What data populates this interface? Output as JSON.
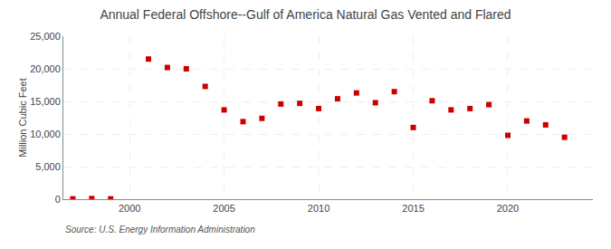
{
  "chart_data": {
    "type": "scatter",
    "title": "Annual Federal Offshore--Gulf of America Natural Gas Vented and Flared",
    "ylabel": "Million Cubic Feet",
    "source": "Source: U.S. Energy Information Administration",
    "x": [
      1997,
      1998,
      1999,
      2001,
      2002,
      2003,
      2004,
      2005,
      2006,
      2007,
      2008,
      2009,
      2010,
      2011,
      2012,
      2013,
      2014,
      2015,
      2016,
      2017,
      2018,
      2019,
      2020,
      2021,
      2022,
      2023
    ],
    "values": [
      50,
      100,
      50,
      21500,
      20200,
      20000,
      17300,
      13700,
      11900,
      12400,
      14600,
      14700,
      13900,
      15400,
      16300,
      14800,
      16500,
      11000,
      15100,
      13700,
      13900,
      14500,
      9800,
      12000,
      11400,
      9500
    ],
    "color": "#cc0000",
    "marker": "square",
    "xlim": [
      1996.5,
      2024.5
    ],
    "xticks": [
      2000,
      2005,
      2010,
      2015,
      2020
    ],
    "ylim": [
      0,
      25000
    ],
    "yticks": [
      0,
      {
        "value": 5000,
        "label": "5,000"
      },
      {
        "value": 10000,
        "label": "10,000"
      },
      {
        "value": 15000,
        "label": "15,000"
      },
      {
        "value": 20000,
        "label": "20,000"
      },
      {
        "value": 25000,
        "label": "25,000"
      }
    ],
    "grid": true
  }
}
